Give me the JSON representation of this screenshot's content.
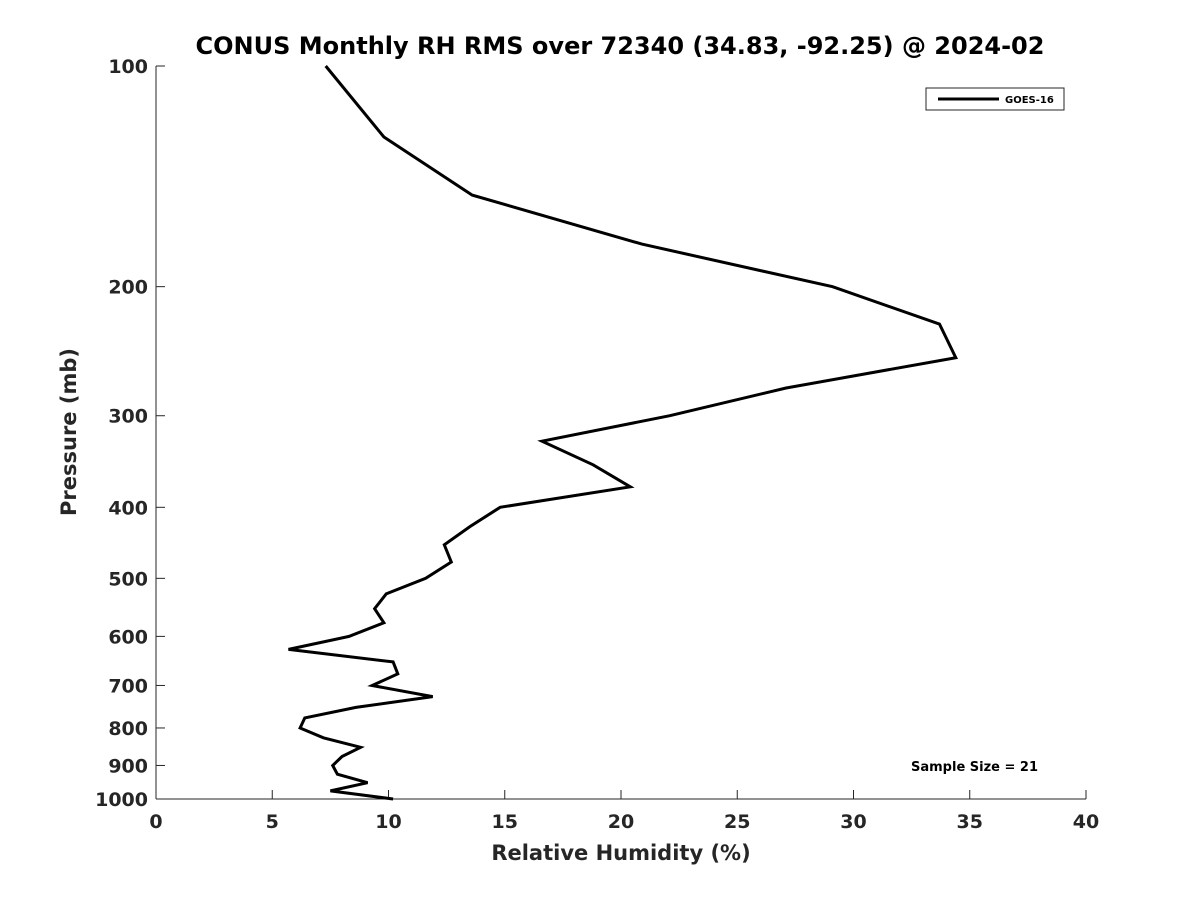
{
  "chart_data": {
    "type": "line",
    "title": "CONUS Monthly RH RMS over 72340 (34.83, -92.25) @ 2024-02",
    "xlabel": "Relative Humidity (%)",
    "ylabel": "Pressure (mb)",
    "xlim": [
      0,
      40
    ],
    "ylim": [
      100,
      1000
    ],
    "y_scale": "log",
    "y_reversed": true,
    "xticks": [
      "0",
      "5",
      "10",
      "15",
      "20",
      "25",
      "30",
      "35",
      "40"
    ],
    "yticks": [
      "100",
      "200",
      "300",
      "400",
      "500",
      "600",
      "700",
      "800",
      "900",
      "1000"
    ],
    "grid": false,
    "legend_placement": "top-right",
    "line_color": "#000000",
    "series": [
      {
        "name": "GOES-16",
        "points": [
          {
            "x": 7.3,
            "y": 100
          },
          {
            "x": 9.8,
            "y": 125
          },
          {
            "x": 13.6,
            "y": 150
          },
          {
            "x": 20.9,
            "y": 175
          },
          {
            "x": 29.1,
            "y": 200
          },
          {
            "x": 33.7,
            "y": 225
          },
          {
            "x": 34.4,
            "y": 250
          },
          {
            "x": 27.1,
            "y": 275
          },
          {
            "x": 22.1,
            "y": 300
          },
          {
            "x": 16.6,
            "y": 325
          },
          {
            "x": 18.8,
            "y": 350
          },
          {
            "x": 20.4,
            "y": 375
          },
          {
            "x": 14.8,
            "y": 400
          },
          {
            "x": 13.5,
            "y": 425
          },
          {
            "x": 12.4,
            "y": 450
          },
          {
            "x": 12.7,
            "y": 475
          },
          {
            "x": 11.6,
            "y": 500
          },
          {
            "x": 9.9,
            "y": 525
          },
          {
            "x": 9.4,
            "y": 550
          },
          {
            "x": 9.8,
            "y": 575
          },
          {
            "x": 8.3,
            "y": 600
          },
          {
            "x": 5.7,
            "y": 625
          },
          {
            "x": 10.2,
            "y": 650
          },
          {
            "x": 10.4,
            "y": 675
          },
          {
            "x": 9.3,
            "y": 700
          },
          {
            "x": 11.9,
            "y": 725
          },
          {
            "x": 8.6,
            "y": 750
          },
          {
            "x": 6.4,
            "y": 775
          },
          {
            "x": 6.2,
            "y": 800
          },
          {
            "x": 7.2,
            "y": 825
          },
          {
            "x": 8.8,
            "y": 850
          },
          {
            "x": 8.0,
            "y": 875
          },
          {
            "x": 7.6,
            "y": 900
          },
          {
            "x": 7.8,
            "y": 925
          },
          {
            "x": 9.1,
            "y": 950
          },
          {
            "x": 7.5,
            "y": 975
          },
          {
            "x": 10.2,
            "y": 1000
          }
        ]
      }
    ],
    "annotation": "Sample Size = 21"
  }
}
